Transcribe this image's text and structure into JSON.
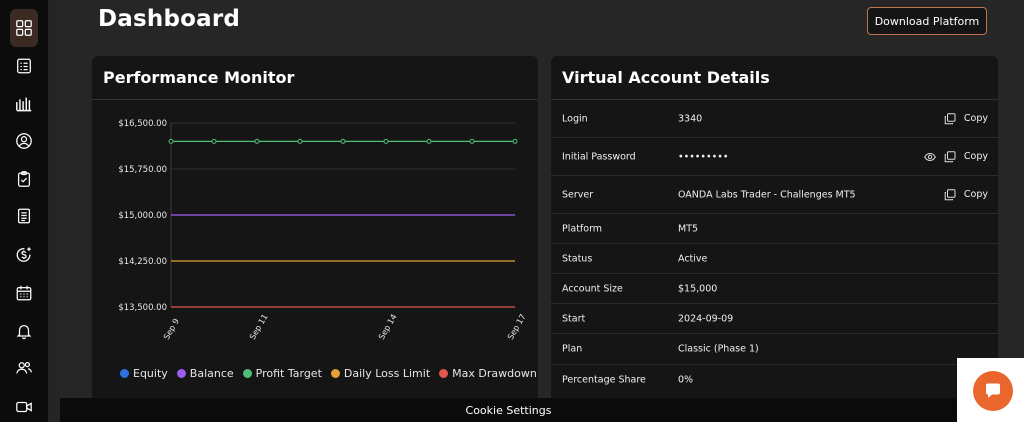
{
  "page": {
    "title": "Dashboard"
  },
  "header": {
    "download_label": "Download Platform"
  },
  "sidebar": {
    "items": [
      {
        "icon": "dashboard-grid-icon"
      },
      {
        "icon": "checklist-icon"
      },
      {
        "icon": "bar-chart-icon"
      },
      {
        "icon": "user-circle-icon"
      },
      {
        "icon": "clipboard-check-icon"
      },
      {
        "icon": "document-icon"
      },
      {
        "icon": "dollar-plus-icon"
      },
      {
        "icon": "calendar-icon"
      },
      {
        "icon": "bell-icon"
      },
      {
        "icon": "users-icon"
      },
      {
        "icon": "video-icon"
      }
    ]
  },
  "performance": {
    "title": "Performance Monitor",
    "legend": [
      {
        "label": "Equity",
        "color": "#2f6fe0"
      },
      {
        "label": "Balance",
        "color": "#9e5cf0"
      },
      {
        "label": "Profit Target",
        "color": "#4fbf78"
      },
      {
        "label": "Daily Loss Limit",
        "color": "#e3a136"
      },
      {
        "label": "Max Drawdown",
        "color": "#e0574e"
      }
    ]
  },
  "chart_data": {
    "type": "line",
    "x": [
      "Sep 9",
      "Sep 10",
      "Sep 11",
      "Sep 12",
      "Sep 13",
      "Sep 14",
      "Sep 15",
      "Sep 16",
      "Sep 17"
    ],
    "x_tick_labels": [
      "Sep 9",
      "Sep 11",
      "Sep 14",
      "Sep 17"
    ],
    "y_tick_labels": [
      "$16,500.00",
      "$15,750.00",
      "$15,000.00",
      "$14,250.00",
      "$13,500.00"
    ],
    "ylim": [
      13500,
      16500
    ],
    "grid": true,
    "series": [
      {
        "name": "Profit Target",
        "color": "#4fbf78",
        "markers": true,
        "values": [
          16200,
          16200,
          16200,
          16200,
          16200,
          16200,
          16200,
          16200,
          16200
        ]
      },
      {
        "name": "Balance",
        "color": "#9e5cf0",
        "markers": false,
        "values": [
          15000,
          15000,
          15000,
          15000,
          15000,
          15000,
          15000,
          15000,
          15000
        ]
      },
      {
        "name": "Daily Loss Limit",
        "color": "#e3a136",
        "markers": false,
        "values": [
          14250,
          14250,
          14250,
          14250,
          14250,
          14250,
          14250,
          14250,
          14250
        ]
      },
      {
        "name": "Max Drawdown",
        "color": "#e0574e",
        "markers": false,
        "values": [
          13500,
          13500,
          13500,
          13500,
          13500,
          13500,
          13500,
          13500,
          13500
        ]
      }
    ]
  },
  "account": {
    "title": "Virtual Account Details",
    "copy_label": "Copy",
    "rows": [
      {
        "label": "Login",
        "value": "3340"
      },
      {
        "label": "Initial Password",
        "value": "•••••••••"
      },
      {
        "label": "Server",
        "value": "OANDA Labs Trader - Challenges MT5"
      },
      {
        "label": "Platform",
        "value": "MT5"
      },
      {
        "label": "Status",
        "value": "Active"
      },
      {
        "label": "Account Size",
        "value": "$15,000"
      },
      {
        "label": "Start",
        "value": "2024-09-09"
      },
      {
        "label": "Plan",
        "value": "Classic (Phase 1)"
      },
      {
        "label": "Percentage Share",
        "value": "0%"
      }
    ]
  },
  "cookie": {
    "label": "Cookie Settings"
  },
  "chat": {
    "icon": "chat-bubble-icon",
    "color": "#e9662c"
  }
}
